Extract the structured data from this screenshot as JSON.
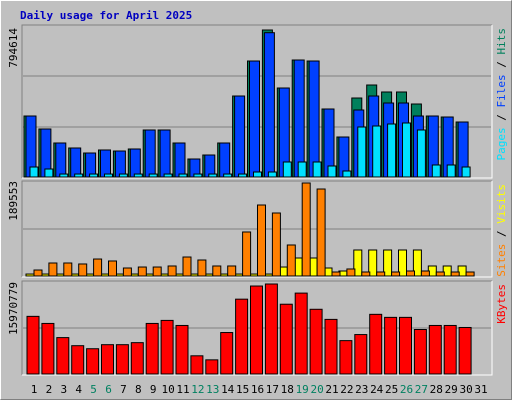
{
  "chart_data": [
    {
      "type": "bar",
      "title": "Daily usage for April 2025",
      "title_color": "#0000c0",
      "ylim": [
        0,
        794614
      ],
      "yticks": [
        794614
      ],
      "legend_separator": " / ",
      "series": [
        {
          "name": "Pages",
          "color": "#00e0ff",
          "values": [
            54000,
            43200,
            16000,
            16000,
            16000,
            16000,
            16000,
            16000,
            16000,
            16000,
            16000,
            16000,
            16000,
            16000,
            16000,
            27000,
            27000,
            81100,
            81100,
            81100,
            59500,
            32400,
            270300,
            275700,
            286500,
            291900,
            254100,
            64900,
            64900,
            54000,
            null
          ]
        },
        {
          "name": "Files",
          "color": "#0040ff",
          "values": [
            329700,
            259500,
            183800,
            156800,
            129700,
            146000,
            140500,
            151400,
            254100,
            254100,
            183800,
            97300,
            118900,
            183800,
            437800,
            627000,
            780000,
            481100,
            632400,
            627000,
            367600,
            216200,
            362200,
            437800,
            400000,
            400000,
            329700,
            329700,
            324300,
            297300,
            null
          ]
        },
        {
          "name": "Hits",
          "color": "#00805c",
          "values": [
            329700,
            259500,
            183800,
            156800,
            129700,
            146000,
            140500,
            151400,
            254100,
            254100,
            183800,
            97300,
            118900,
            183800,
            437800,
            627000,
            794614,
            481100,
            632400,
            627000,
            367600,
            216200,
            427000,
            497300,
            459500,
            459500,
            394600,
            329700,
            324300,
            297300,
            null
          ]
        }
      ]
    },
    {
      "type": "bar",
      "ylim": [
        0,
        189553
      ],
      "yticks": [
        189553
      ],
      "legend_separator": " / ",
      "series": [
        {
          "name": "Sites",
          "color": "#ff8000",
          "values": [
            12200,
            26500,
            26500,
            24500,
            34600,
            30600,
            16300,
            18300,
            18300,
            20400,
            38700,
            32600,
            20400,
            20400,
            89700,
            144700,
            128400,
            63200,
            189553,
            177300,
            8150,
            14300,
            8150,
            8150,
            8150,
            10200,
            10200,
            8150,
            8150,
            8150,
            null
          ]
        },
        {
          "name": "Visits",
          "color": "#ffff00",
          "values": [
            4000,
            4000,
            4000,
            4000,
            4000,
            4000,
            4000,
            4000,
            4000,
            4000,
            4000,
            4000,
            4000,
            4000,
            4000,
            4000,
            4000,
            18300,
            36700,
            36700,
            16300,
            10200,
            53000,
            53000,
            53000,
            53000,
            53000,
            20400,
            20400,
            20400,
            null
          ]
        }
      ]
    },
    {
      "type": "bar",
      "ylim": [
        0,
        15970779
      ],
      "yticks": [
        15970779
      ],
      "categories": [
        "1",
        "2",
        "3",
        "4",
        "5",
        "6",
        "7",
        "8",
        "9",
        "10",
        "11",
        "12",
        "13",
        "14",
        "15",
        "16",
        "17",
        "18",
        "19",
        "20",
        "21",
        "22",
        "23",
        "24",
        "25",
        "26",
        "27",
        "28",
        "29",
        "30",
        "31"
      ],
      "category_colors": [
        "#000000",
        "#000000",
        "#000000",
        "#000000",
        "#008060",
        "#008060",
        "#000000",
        "#000000",
        "#000000",
        "#000000",
        "#000000",
        "#008060",
        "#008060",
        "#000000",
        "#000000",
        "#000000",
        "#000000",
        "#000000",
        "#008060",
        "#008060",
        "#000000",
        "#000000",
        "#000000",
        "#000000",
        "#000000",
        "#008060",
        "#008060",
        "#000000",
        "#000000",
        "#000000",
        "#000000"
      ],
      "series": [
        {
          "name": "KBytes",
          "color": "#ff0000",
          "values": [
            10229000,
            8972500,
            6460200,
            5024600,
            4486300,
            5204000,
            5204000,
            5563000,
            8972500,
            9510900,
            8613600,
            3230100,
            2512300,
            7357500,
            13279300,
            15612200,
            15970779,
            12382000,
            14356000,
            11484800,
            9690300,
            5921900,
            6998600,
            10587600,
            10049200,
            10049200,
            7895800,
            8613600,
            8613600,
            8254700,
            null
          ]
        }
      ]
    }
  ]
}
